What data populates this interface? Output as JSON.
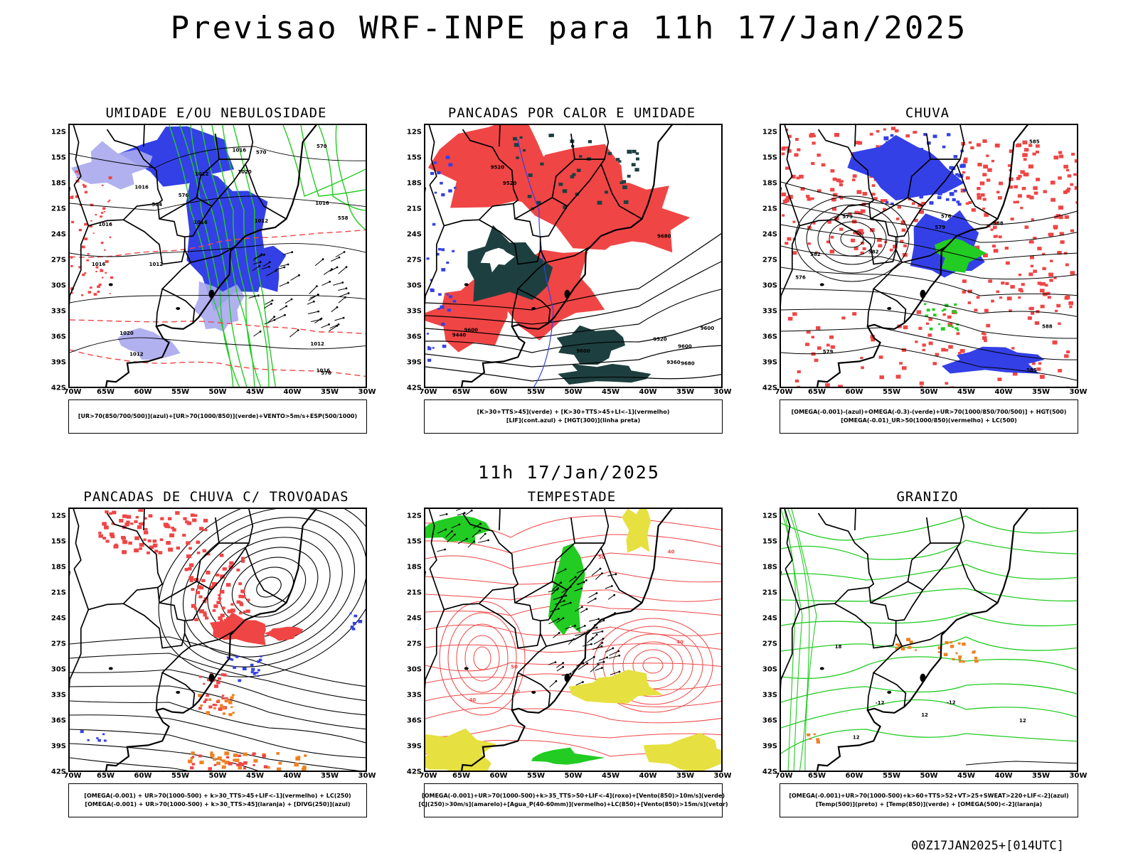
{
  "header": {
    "title": "Previsao WRF-INPE  para 11h 17/Jan/2025"
  },
  "middle": {
    "title": "11h 17/Jan/2025"
  },
  "footer": {
    "run": "00Z17JAN2025+[014UTC]"
  },
  "axes": {
    "lat_labels": [
      "12S",
      "15S",
      "18S",
      "21S",
      "24S",
      "27S",
      "30S",
      "33S",
      "36S",
      "39S",
      "42S"
    ],
    "lon_labels": [
      "70W",
      "65W",
      "60W",
      "55W",
      "50W",
      "45W",
      "40W",
      "35W",
      "30W"
    ]
  },
  "colors": {
    "blue": "#3340e6",
    "lightblue": "#a8a8ee",
    "green": "#22cc22",
    "red": "#f04545",
    "darkteal": "#1e3f3f",
    "yellow": "#e6e040",
    "orange": "#f08020"
  },
  "panels": [
    {
      "title": "UMIDADE E/OU NEBULOSIDADE",
      "legend": [
        "[UR>70(850/700/500)](azul)+[UR>70(1000/850)](verde)+VENTO>5m/s+ESP(500/1000)"
      ],
      "contour_labels": [
        "1016",
        "1012",
        "1012",
        "1016",
        "1016",
        "1012",
        "1016",
        "1020",
        "1016",
        "1012",
        "1020",
        "1016",
        "1012",
        "1016",
        "576",
        "570",
        "576",
        "564",
        "558",
        "570"
      ]
    },
    {
      "title": "PANCADAS POR CALOR E UMIDADE",
      "legend": [
        "[K>30+TTS>45](verde) + [K>30+TTS>45+LI<-1](vermelho)",
        "[LIF](cont.azul) + [HGT(300)](linha preta)"
      ],
      "contour_labels": [
        "9600",
        "9680",
        "9680",
        "9600",
        "9520",
        "9600",
        "9520",
        "9440",
        "9360",
        "9520",
        "9600"
      ]
    },
    {
      "title": "CHUVA",
      "legend": [
        "[OMEGA(-0.001)-(azul)+OMEGA(-0.3)-(verde)+UR>70(1000/850/700/500)] + HGT(500)",
        "[OMEGA(-0.01)_UR>50(1000/850)(vermelho) + LC(500)"
      ],
      "contour_labels": [
        "588",
        "585",
        "582",
        "582",
        "579",
        "579",
        "576",
        "579",
        "585",
        "588",
        "576"
      ]
    },
    {
      "title": "PANCADAS DE CHUVA C/ TROVOADAS",
      "legend": [
        "[OMEGA(-0.001) + UR>70(1000-500) + k>30_TTS>45+LIF<-1](vermelho) + LC(250)",
        "[OMEGA(-0.001) + UR>70(1000-500) + k>30_TTS>45](laranja) + [DIVG(250)](azul)"
      ],
      "contour_labels": []
    },
    {
      "title": "TEMPESTADE",
      "legend": [
        "[OMEGA(-0.001)+UR>70(1000-500)+k>35_TTS>50+LIF<-4](roxo)+[Vento(850)>10m/s](verde)",
        "[CJ(250)>30m/s](amarelo)+[Agua_P(40-60mm)](vermelho)+LC(850)+[Vento(850)>15m/s](vetor)"
      ],
      "contour_labels": [
        "40",
        "40",
        "50",
        "40",
        "40",
        "50"
      ]
    },
    {
      "title": "GRANIZO",
      "legend": [
        "[OMEGA(-0.001)+UR>70(1000-500)+k>60+TTS>52+VT>25+SWEAT>220+LIF<-2](azul)",
        "[Temp(500)](preto) + [Temp(850)](verde) + [OMEGA(500)<-2](laranja)"
      ],
      "contour_labels": [
        "-12",
        "-12",
        "12",
        "12",
        "18",
        "12"
      ]
    }
  ]
}
